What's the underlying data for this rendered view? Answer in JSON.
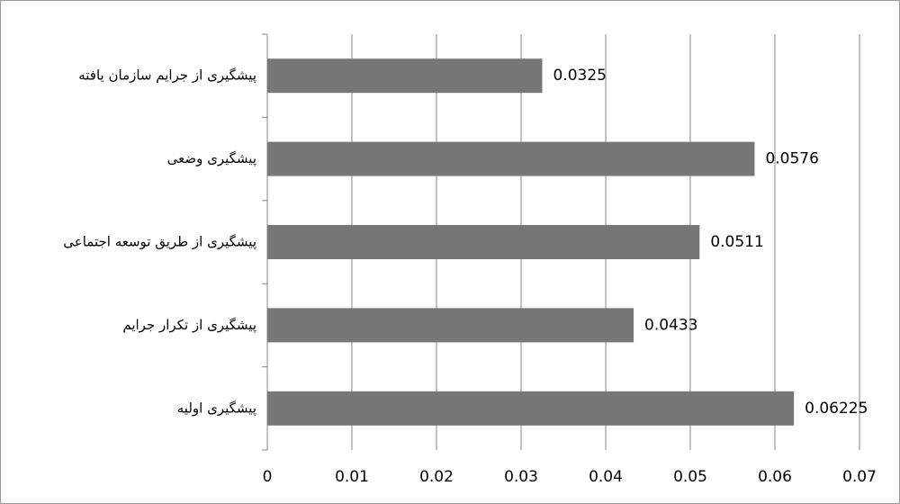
{
  "chart_data": {
    "type": "bar",
    "orientation": "horizontal",
    "categories": [
      "پیشگیری از جرایم سازمان یافته",
      "پیشگیری وضعی",
      "پیشگیری از طریق توسعه اجتماعی",
      "پیشگیری از تکرار جرایم",
      "پیشگیری اولیه"
    ],
    "values": [
      0.0325,
      0.0576,
      0.0511,
      0.0433,
      0.06225
    ],
    "color": "#777777",
    "xlim": [
      0,
      0.07
    ],
    "xticks": [
      0,
      0.01,
      0.02,
      0.03,
      0.04,
      0.05,
      0.06,
      0.07
    ],
    "grid": true
  }
}
